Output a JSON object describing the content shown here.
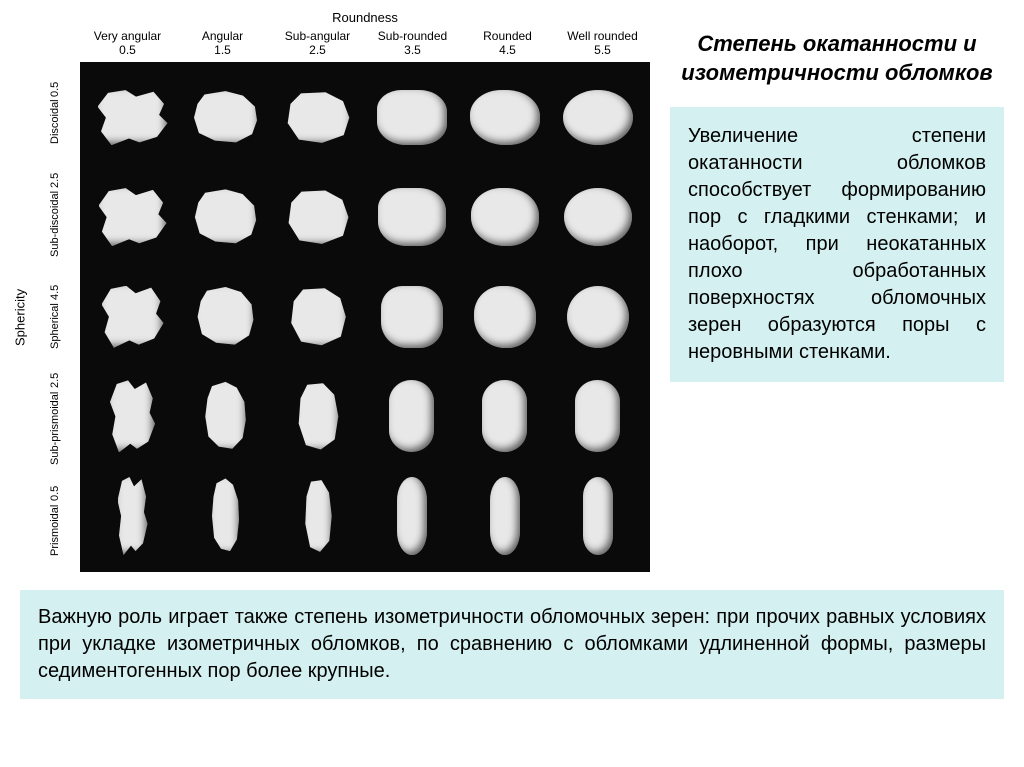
{
  "chart": {
    "x_axis_title": "Roundness",
    "y_axis_title": "Sphericity",
    "background_color": "#0a0a0a",
    "grain_color": "#e8e8e8",
    "columns": [
      {
        "label": "Very angular",
        "value": "0.5"
      },
      {
        "label": "Angular",
        "value": "1.5"
      },
      {
        "label": "Sub-angular",
        "value": "2.5"
      },
      {
        "label": "Sub-rounded",
        "value": "3.5"
      },
      {
        "label": "Rounded",
        "value": "4.5"
      },
      {
        "label": "Well rounded",
        "value": "5.5"
      }
    ],
    "rows": [
      {
        "label": "Discoidal",
        "value": "0.5"
      },
      {
        "label": "Sub-discoidal",
        "value": "2.5"
      },
      {
        "label": "Spherical",
        "value": "4.5"
      },
      {
        "label": "Sub-prismoidal",
        "value": "2.5"
      },
      {
        "label": "Prismoidal",
        "value": "0.5"
      }
    ]
  },
  "title": "Степень окатанности и изометричности обломков",
  "paragraph1": "Увеличение степени окатанности обломков способствует формированию пор с гладкими стенками; и наоборот, при неокатанных плохо обработанных поверхностях обломочных зерен образуются поры с неровными стенками.",
  "paragraph2": "Важную роль играет также степень изометричности обломочных зерен: при прочих равных условиях при укладке изометричных обломков, по сравнению с обломками удлиненной формы, размеры седиментогенных пор более крупные.",
  "colors": {
    "textbox_bg": "#d4f0f0",
    "page_bg": "#ffffff",
    "title_color": "#000000",
    "text_color": "#000000"
  },
  "typography": {
    "title_fontsize_pt": 17,
    "body_fontsize_pt": 15,
    "chart_label_fontsize_pt": 10
  }
}
